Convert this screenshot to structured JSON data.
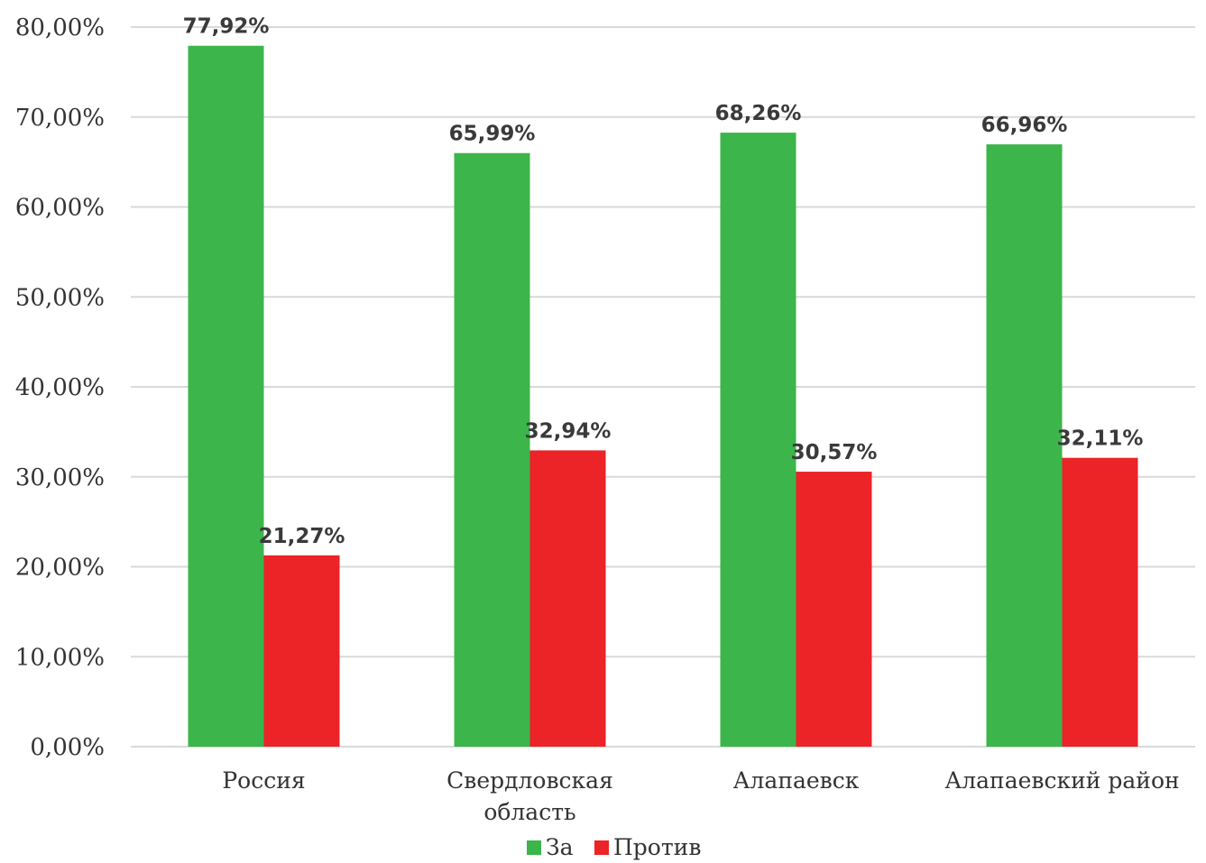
{
  "chart_data": {
    "type": "bar",
    "categories": [
      [
        "Россия"
      ],
      [
        "Свердловская",
        "область"
      ],
      [
        "Алапаевск"
      ],
      [
        "Алапаевский район"
      ]
    ],
    "series": [
      {
        "name": "За",
        "color": "#3cb54a",
        "values": [
          77.92,
          65.99,
          68.26,
          66.96
        ],
        "labels": [
          "77,92%",
          "65,99%",
          "68,26%",
          "66,96%"
        ]
      },
      {
        "name": "Против",
        "color": "#ec2327",
        "values": [
          21.27,
          32.94,
          30.57,
          32.11
        ],
        "labels": [
          "21,27%",
          "32,94%",
          "30,57%",
          "32,11%"
        ]
      }
    ],
    "yticks": [
      0,
      10,
      20,
      30,
      40,
      50,
      60,
      70,
      80
    ],
    "ytick_labels": [
      "0,00%",
      "10,00%",
      "20,00%",
      "30,00%",
      "40,00%",
      "50,00%",
      "60,00%",
      "70,00%",
      "80,00%"
    ],
    "ylim": [
      0,
      80
    ],
    "grid": true,
    "legend": "bottom",
    "title": "",
    "xlabel": "",
    "ylabel": ""
  }
}
